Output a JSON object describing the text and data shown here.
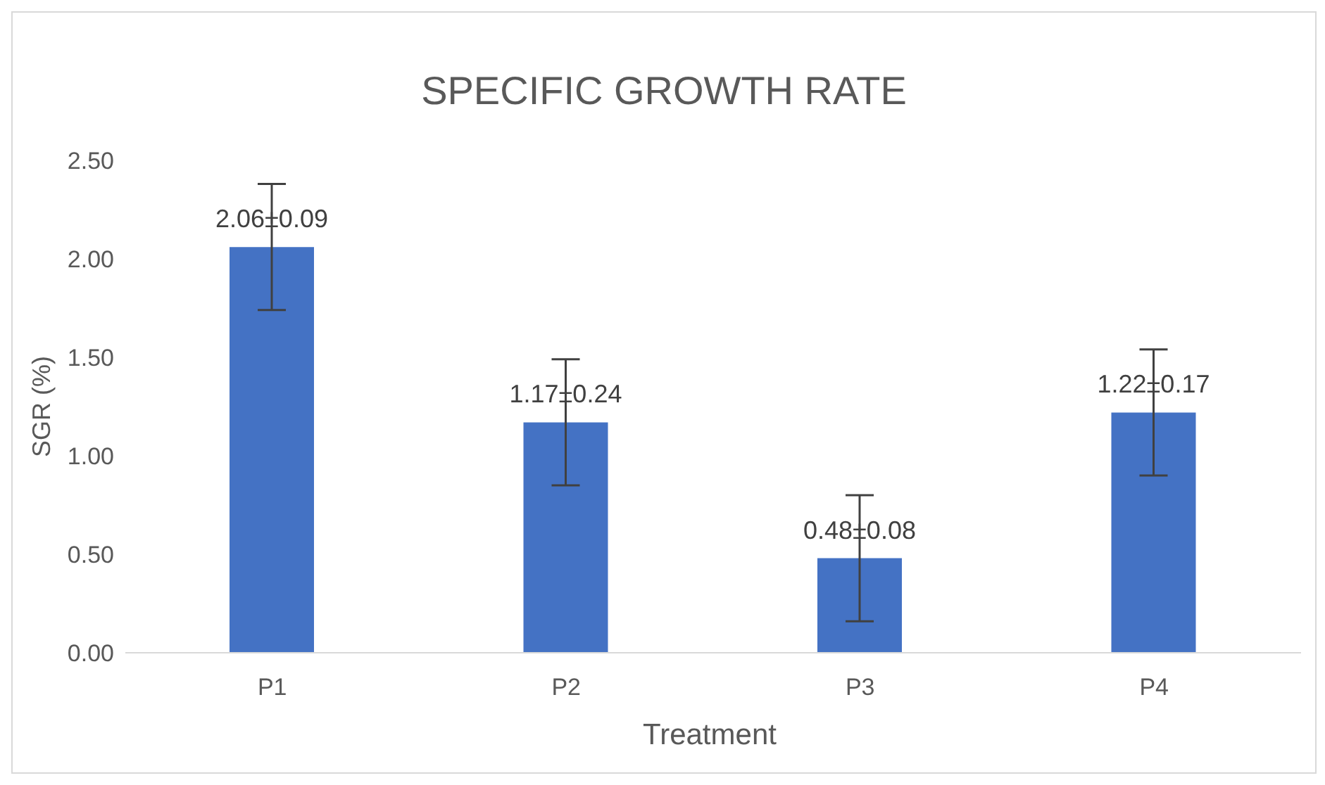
{
  "chart_data": {
    "type": "bar",
    "title": "SPECIFIC GROWTH RATE",
    "xlabel": "Treatment",
    "ylabel": "SGR (%)",
    "categories": [
      "P1",
      "P2",
      "P3",
      "P4"
    ],
    "values": [
      2.06,
      1.17,
      0.48,
      1.22
    ],
    "errors": [
      0.32,
      0.32,
      0.32,
      0.32
    ],
    "value_labels": [
      "2.06±0.09",
      "1.17±0.24",
      "0.48±0.08",
      "1.22±0.17"
    ],
    "color": "#4472c4",
    "ylim": [
      0,
      2.5
    ],
    "yticks": [
      {
        "value": 0,
        "label": "0.00"
      },
      {
        "value": 0.5,
        "label": "0.50"
      },
      {
        "value": 1,
        "label": "1.00"
      },
      {
        "value": 1.5,
        "label": "1.50"
      },
      {
        "value": 2,
        "label": "2.00"
      },
      {
        "value": 2.5,
        "label": "2.50"
      }
    ],
    "grid": false,
    "legend": false
  }
}
